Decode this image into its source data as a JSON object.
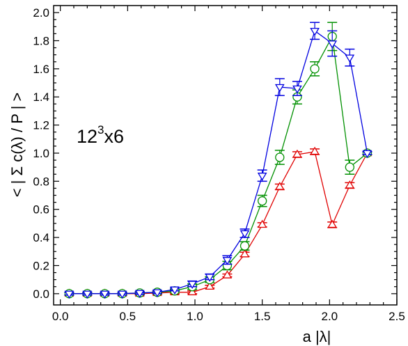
{
  "chart_data": {
    "type": "line",
    "title": "",
    "xlabel": "a |λ|",
    "ylabel": "< | Σ c(λ) / P | >",
    "annotation": {
      "base": "12",
      "exponent": "3",
      "suffix": "x6"
    },
    "xlim": [
      -0.05,
      2.5
    ],
    "ylim": [
      -0.08,
      2.05
    ],
    "xticks": [
      0.0,
      0.5,
      1.0,
      1.5,
      2.0,
      2.5
    ],
    "xtick_labels": [
      "0.0",
      "0.5",
      "1.0",
      "1.5",
      "2.0",
      "2.5"
    ],
    "yticks": [
      0.0,
      0.2,
      0.4,
      0.6,
      0.8,
      1.0,
      1.2,
      1.4,
      1.6,
      1.8,
      2.0
    ],
    "ytick_labels": [
      "0.0",
      "0.2",
      "0.4",
      "0.6",
      "0.8",
      "1.0",
      "1.2",
      "1.4",
      "1.6",
      "1.8",
      "2.0"
    ],
    "grid": false,
    "series": [
      {
        "color": "#e00000",
        "marker": "triangle-up",
        "x": [
          0.066,
          0.2,
          0.33,
          0.46,
          0.59,
          0.72,
          0.85,
          0.98,
          1.11,
          1.24,
          1.37,
          1.5,
          1.63,
          1.76,
          1.89,
          2.02,
          2.15,
          2.28
        ],
        "y": [
          0.0,
          0.0,
          0.0,
          0.0,
          0.0,
          0.005,
          0.01,
          0.01,
          0.05,
          0.13,
          0.28,
          0.49,
          0.76,
          0.99,
          1.01,
          0.49,
          0.77,
          1.0
        ],
        "err": [
          0.01,
          0.01,
          0.01,
          0.01,
          0.01,
          0.01,
          0.01,
          0.01,
          0.01,
          0.01,
          0.015,
          0.015,
          0.02,
          0.02,
          0.02,
          0.02,
          0.02,
          0.01
        ]
      },
      {
        "color": "#009000",
        "marker": "circle",
        "x": [
          0.066,
          0.2,
          0.33,
          0.46,
          0.59,
          0.72,
          0.85,
          0.98,
          1.11,
          1.24,
          1.37,
          1.5,
          1.63,
          1.76,
          1.89,
          2.02,
          2.15,
          2.28
        ],
        "y": [
          0.0,
          0.0,
          0.0,
          0.0,
          0.005,
          0.01,
          0.02,
          0.05,
          0.1,
          0.2,
          0.34,
          0.66,
          0.97,
          1.4,
          1.6,
          1.83,
          0.9,
          1.0
        ],
        "err": [
          0.01,
          0.01,
          0.01,
          0.01,
          0.01,
          0.01,
          0.01,
          0.02,
          0.02,
          0.03,
          0.03,
          0.04,
          0.05,
          0.05,
          0.05,
          0.1,
          0.05,
          0.01
        ]
      },
      {
        "color": "#0000e0",
        "marker": "triangle-down",
        "x": [
          0.066,
          0.2,
          0.33,
          0.46,
          0.59,
          0.72,
          0.85,
          0.98,
          1.11,
          1.24,
          1.37,
          1.5,
          1.63,
          1.76,
          1.89,
          2.02,
          2.15,
          2.28
        ],
        "y": [
          0.0,
          0.0,
          0.0,
          0.0,
          0.005,
          0.01,
          0.03,
          0.07,
          0.12,
          0.24,
          0.43,
          0.84,
          1.47,
          1.46,
          1.87,
          1.78,
          1.68,
          1.0
        ],
        "err": [
          0.01,
          0.01,
          0.01,
          0.01,
          0.01,
          0.01,
          0.01,
          0.02,
          0.02,
          0.03,
          0.03,
          0.04,
          0.06,
          0.05,
          0.06,
          0.09,
          0.06,
          0.01
        ]
      }
    ]
  }
}
